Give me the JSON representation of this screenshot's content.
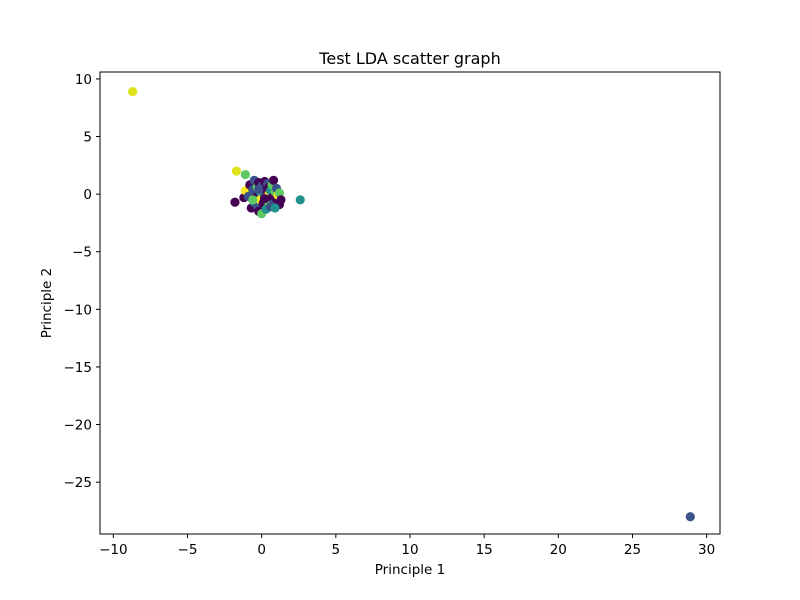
{
  "chart_data": {
    "type": "scatter",
    "title": "Test LDA scatter graph",
    "xlabel": "Principle 1",
    "ylabel": "Principle 2",
    "xlim": [
      -10.9,
      30.9
    ],
    "ylim": [
      -29.5,
      10.6
    ],
    "xticks": [
      -10,
      -5,
      0,
      5,
      10,
      15,
      20,
      25,
      30
    ],
    "yticks": [
      10,
      5,
      0,
      -5,
      -10,
      -15,
      -20,
      -25
    ],
    "xtick_labels": [
      "−10",
      "−5",
      "0",
      "5",
      "10",
      "15",
      "20",
      "25",
      "30"
    ],
    "ytick_labels": [
      "10",
      "5",
      "0",
      "−5",
      "−10",
      "−15",
      "−20",
      "−25"
    ],
    "grid": false,
    "palette": {
      "c0": "#440154",
      "c1": "#3b528b",
      "c2": "#21918c",
      "c3": "#5ec962",
      "c4": "#fde725",
      "c5": "#dde318"
    },
    "points": [
      {
        "x": -8.7,
        "y": 8.9,
        "c": "c5"
      },
      {
        "x": 28.9,
        "y": -28.0,
        "c": "c1"
      },
      {
        "x": 2.6,
        "y": -0.5,
        "c": "c2"
      },
      {
        "x": -1.7,
        "y": 2.0,
        "c": "c5"
      },
      {
        "x": -1.8,
        "y": -0.7,
        "c": "c0"
      },
      {
        "x": -1.1,
        "y": 1.7,
        "c": "c3"
      },
      {
        "x": -1.2,
        "y": -0.3,
        "c": "c0"
      },
      {
        "x": -1.1,
        "y": 0.3,
        "c": "c4"
      },
      {
        "x": -0.9,
        "y": -0.2,
        "c": "c1"
      },
      {
        "x": -0.8,
        "y": 0.8,
        "c": "c0"
      },
      {
        "x": -0.7,
        "y": -1.2,
        "c": "c0"
      },
      {
        "x": -0.6,
        "y": 0.4,
        "c": "c1"
      },
      {
        "x": -0.5,
        "y": 1.2,
        "c": "c1"
      },
      {
        "x": -0.5,
        "y": -0.7,
        "c": "c2"
      },
      {
        "x": -0.4,
        "y": -0.3,
        "c": "c0"
      },
      {
        "x": -0.3,
        "y": 0.6,
        "c": "c3"
      },
      {
        "x": -0.3,
        "y": -1.0,
        "c": "c1"
      },
      {
        "x": -0.2,
        "y": 1.0,
        "c": "c0"
      },
      {
        "x": -0.2,
        "y": -1.5,
        "c": "c0"
      },
      {
        "x": -0.1,
        "y": 0.2,
        "c": "c2"
      },
      {
        "x": -0.1,
        "y": -0.5,
        "c": "c4"
      },
      {
        "x": 0.0,
        "y": 0.7,
        "c": "c1"
      },
      {
        "x": 0.0,
        "y": -1.7,
        "c": "c3"
      },
      {
        "x": 0.1,
        "y": -0.8,
        "c": "c0"
      },
      {
        "x": 0.1,
        "y": 0.1,
        "c": "c3"
      },
      {
        "x": 0.2,
        "y": 1.1,
        "c": "c0"
      },
      {
        "x": 0.2,
        "y": -0.2,
        "c": "c1"
      },
      {
        "x": 0.3,
        "y": -1.3,
        "c": "c2"
      },
      {
        "x": 0.3,
        "y": 0.4,
        "c": "c0"
      },
      {
        "x": 0.4,
        "y": 0.9,
        "c": "c1"
      },
      {
        "x": 0.4,
        "y": -0.6,
        "c": "c3"
      },
      {
        "x": 0.5,
        "y": 0.0,
        "c": "c4"
      },
      {
        "x": 0.5,
        "y": 0.6,
        "c": "c0"
      },
      {
        "x": 0.6,
        "y": -1.1,
        "c": "c1"
      },
      {
        "x": 0.6,
        "y": 0.3,
        "c": "c2"
      },
      {
        "x": 0.7,
        "y": -0.3,
        "c": "c0"
      },
      {
        "x": 0.7,
        "y": 0.8,
        "c": "c3"
      },
      {
        "x": 0.8,
        "y": 1.2,
        "c": "c0"
      },
      {
        "x": 0.8,
        "y": -0.8,
        "c": "c1"
      },
      {
        "x": 0.9,
        "y": 0.2,
        "c": "c3"
      },
      {
        "x": 1.0,
        "y": -0.4,
        "c": "c0"
      },
      {
        "x": 1.0,
        "y": 0.5,
        "c": "c1"
      },
      {
        "x": 1.1,
        "y": -0.1,
        "c": "c4"
      },
      {
        "x": 1.2,
        "y": -0.9,
        "c": "c0"
      },
      {
        "x": 1.2,
        "y": 0.1,
        "c": "c3"
      },
      {
        "x": 1.3,
        "y": -0.5,
        "c": "c0"
      },
      {
        "x": -0.2,
        "y": 0.4,
        "c": "c1"
      },
      {
        "x": 0.2,
        "y": -0.4,
        "c": "c0"
      },
      {
        "x": -0.6,
        "y": -0.5,
        "c": "c3"
      },
      {
        "x": 0.9,
        "y": -1.2,
        "c": "c2"
      }
    ]
  }
}
